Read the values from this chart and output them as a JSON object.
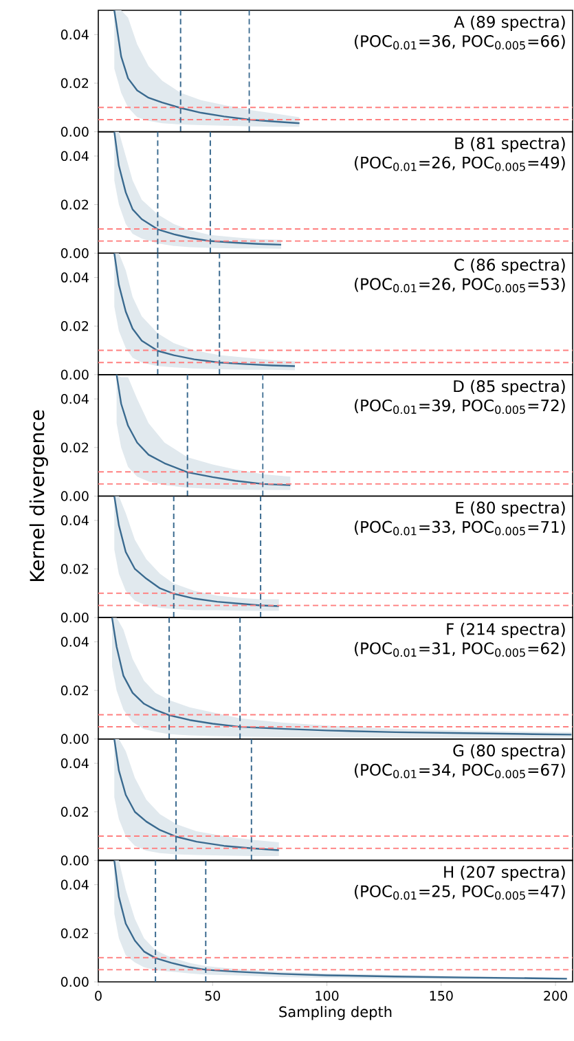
{
  "chart_data": [
    {
      "type": "line",
      "annotations": [
        "A (89 spectra)",
        "(POC$_{0.01}$=36, POC$_{0.005}$=66)"
      ],
      "xlim": [
        0,
        207.5
      ],
      "ylim": [
        0,
        0.05
      ],
      "xticks": [
        0,
        50,
        100,
        150,
        200
      ],
      "yticks": [
        {
          "value": 0,
          "label": "0.00"
        },
        {
          "value": 0.02,
          "label": "0.02"
        },
        {
          "value": 0.04,
          "label": "0.04"
        }
      ],
      "tick_labels": "y",
      "grid": false,
      "series": [
        {
          "color": "#3a6a8f",
          "x": [
            7,
            10,
            13,
            17,
            22,
            28,
            36,
            45,
            55,
            66,
            77,
            88
          ],
          "values": [
            0.05,
            0.031,
            0.022,
            0.017,
            0.014,
            0.012,
            0.0098,
            0.0078,
            0.0063,
            0.005,
            0.0042,
            0.0035
          ],
          "upper": [
            0.05,
            0.05,
            0.047,
            0.036,
            0.027,
            0.021,
            0.016,
            0.013,
            0.011,
            0.009,
            0.0075,
            0.006
          ],
          "lower": [
            0.026,
            0.016,
            0.01,
            0.006,
            0.0045,
            0.0035,
            0.003,
            0.0027,
            0.0025,
            0.0022,
            0.002,
            0.002
          ]
        }
      ],
      "ref_lines": [
        {
          "axis": "y",
          "value": 0.01,
          "color": "#ff8080",
          "line_style": "dashed"
        },
        {
          "axis": "y",
          "value": 0.005,
          "color": "#ff8080",
          "line_style": "dashed"
        },
        {
          "axis": "x",
          "value": 36,
          "color": "#3a6a8f",
          "line_style": "dashed"
        },
        {
          "axis": "x",
          "value": 66,
          "color": "#3a6a8f",
          "line_style": "dashed"
        }
      ]
    },
    {
      "type": "line",
      "annotations": [
        "B (81 spectra)",
        "(POC$_{0.01}$=26, POC$_{0.005}$=49)"
      ],
      "xlim": [
        0,
        207.5
      ],
      "ylim": [
        0,
        0.05
      ],
      "xticks": [
        0,
        50,
        100,
        150,
        200
      ],
      "yticks": [
        {
          "value": 0,
          "label": "0.00"
        },
        {
          "value": 0.02,
          "label": "0.02"
        },
        {
          "value": 0.04,
          "label": "0.04"
        }
      ],
      "tick_labels": "y",
      "grid": false,
      "series": [
        {
          "color": "#3a6a8f",
          "x": [
            7,
            9,
            12,
            15,
            19,
            26,
            33,
            40,
            49,
            60,
            70,
            80
          ],
          "values": [
            0.05,
            0.036,
            0.025,
            0.018,
            0.014,
            0.0098,
            0.0078,
            0.0063,
            0.005,
            0.0043,
            0.0038,
            0.0035
          ],
          "upper": [
            0.05,
            0.05,
            0.04,
            0.03,
            0.022,
            0.016,
            0.012,
            0.0095,
            0.0075,
            0.0065,
            0.0058,
            0.0055
          ],
          "lower": [
            0.03,
            0.02,
            0.012,
            0.008,
            0.006,
            0.004,
            0.003,
            0.0025,
            0.0022,
            0.002,
            0.002,
            0.0018
          ]
        }
      ],
      "ref_lines": [
        {
          "axis": "y",
          "value": 0.01,
          "color": "#ff8080",
          "line_style": "dashed"
        },
        {
          "axis": "y",
          "value": 0.005,
          "color": "#ff8080",
          "line_style": "dashed"
        },
        {
          "axis": "x",
          "value": 26,
          "color": "#3a6a8f",
          "line_style": "dashed"
        },
        {
          "axis": "x",
          "value": 49,
          "color": "#3a6a8f",
          "line_style": "dashed"
        }
      ]
    },
    {
      "type": "line",
      "annotations": [
        "C (86 spectra)",
        "(POC$_{0.01}$=26, POC$_{0.005}$=53)"
      ],
      "xlim": [
        0,
        207.5
      ],
      "ylim": [
        0,
        0.05
      ],
      "xticks": [
        0,
        50,
        100,
        150,
        200
      ],
      "yticks": [
        {
          "value": 0,
          "label": "0.00"
        },
        {
          "value": 0.02,
          "label": "0.02"
        },
        {
          "value": 0.04,
          "label": "0.04"
        }
      ],
      "tick_labels": "y",
      "grid": false,
      "series": [
        {
          "color": "#3a6a8f",
          "x": [
            7,
            9,
            12,
            15,
            19,
            26,
            33,
            42,
            53,
            65,
            76,
            86
          ],
          "values": [
            0.05,
            0.037,
            0.026,
            0.019,
            0.014,
            0.0098,
            0.008,
            0.0063,
            0.005,
            0.0043,
            0.0038,
            0.0035
          ],
          "upper": [
            0.05,
            0.05,
            0.043,
            0.032,
            0.024,
            0.017,
            0.013,
            0.01,
            0.008,
            0.007,
            0.006,
            0.0055
          ],
          "lower": [
            0.028,
            0.018,
            0.011,
            0.007,
            0.005,
            0.0035,
            0.003,
            0.0025,
            0.0022,
            0.002,
            0.002,
            0.0018
          ]
        }
      ],
      "ref_lines": [
        {
          "axis": "y",
          "value": 0.01,
          "color": "#ff8080",
          "line_style": "dashed"
        },
        {
          "axis": "y",
          "value": 0.005,
          "color": "#ff8080",
          "line_style": "dashed"
        },
        {
          "axis": "x",
          "value": 26,
          "color": "#3a6a8f",
          "line_style": "dashed"
        },
        {
          "axis": "x",
          "value": 53,
          "color": "#3a6a8f",
          "line_style": "dashed"
        }
      ]
    },
    {
      "type": "line",
      "ylabel": "Kernel divergence",
      "annotations": [
        "D (85 spectra)",
        "(POC$_{0.01}$=39, POC$_{0.005}$=72)"
      ],
      "xlim": [
        0,
        207.5
      ],
      "ylim": [
        0,
        0.05
      ],
      "xticks": [
        0,
        50,
        100,
        150,
        200
      ],
      "yticks": [
        {
          "value": 0,
          "label": "0.00"
        },
        {
          "value": 0.02,
          "label": "0.02"
        },
        {
          "value": 0.04,
          "label": "0.04"
        }
      ],
      "tick_labels": "y",
      "grid": false,
      "series": [
        {
          "color": "#3a6a8f",
          "x": [
            8,
            10,
            13,
            17,
            22,
            29,
            39,
            50,
            60,
            72,
            84
          ],
          "values": [
            0.05,
            0.038,
            0.029,
            0.022,
            0.017,
            0.0135,
            0.0098,
            0.0078,
            0.0063,
            0.005,
            0.0045
          ],
          "upper": [
            0.05,
            0.049,
            0.049,
            0.04,
            0.03,
            0.022,
            0.016,
            0.013,
            0.011,
            0.009,
            0.008
          ],
          "lower": [
            0.03,
            0.02,
            0.012,
            0.008,
            0.006,
            0.0045,
            0.0035,
            0.003,
            0.0027,
            0.0025,
            0.0025
          ]
        }
      ],
      "ref_lines": [
        {
          "axis": "y",
          "value": 0.01,
          "color": "#ff8080",
          "line_style": "dashed"
        },
        {
          "axis": "y",
          "value": 0.005,
          "color": "#ff8080",
          "line_style": "dashed"
        },
        {
          "axis": "x",
          "value": 39,
          "color": "#3a6a8f",
          "line_style": "dashed"
        },
        {
          "axis": "x",
          "value": 72,
          "color": "#3a6a8f",
          "line_style": "dashed"
        }
      ]
    },
    {
      "type": "line",
      "annotations": [
        "E (80 spectra)",
        "(POC$_{0.01}$=33, POC$_{0.005}$=71)"
      ],
      "xlim": [
        0,
        207.5
      ],
      "ylim": [
        0,
        0.05
      ],
      "xticks": [
        0,
        50,
        100,
        150,
        200
      ],
      "yticks": [
        {
          "value": 0,
          "label": "0.00"
        },
        {
          "value": 0.02,
          "label": "0.02"
        },
        {
          "value": 0.04,
          "label": "0.04"
        }
      ],
      "tick_labels": "y",
      "grid": false,
      "series": [
        {
          "color": "#3a6a8f",
          "x": [
            7,
            9,
            12,
            16,
            21,
            27,
            33,
            42,
            52,
            62,
            71,
            79
          ],
          "values": [
            0.05,
            0.038,
            0.027,
            0.02,
            0.016,
            0.012,
            0.0098,
            0.0078,
            0.0065,
            0.0057,
            0.005,
            0.0047
          ],
          "upper": [
            0.05,
            0.05,
            0.043,
            0.032,
            0.024,
            0.018,
            0.014,
            0.011,
            0.009,
            0.008,
            0.0075,
            0.0075
          ],
          "lower": [
            0.028,
            0.018,
            0.011,
            0.007,
            0.005,
            0.004,
            0.0035,
            0.003,
            0.003,
            0.0028,
            0.0027,
            0.0028
          ]
        }
      ],
      "ref_lines": [
        {
          "axis": "y",
          "value": 0.01,
          "color": "#ff8080",
          "line_style": "dashed"
        },
        {
          "axis": "y",
          "value": 0.005,
          "color": "#ff8080",
          "line_style": "dashed"
        },
        {
          "axis": "x",
          "value": 33,
          "color": "#3a6a8f",
          "line_style": "dashed"
        },
        {
          "axis": "x",
          "value": 71,
          "color": "#3a6a8f",
          "line_style": "dashed"
        }
      ]
    },
    {
      "type": "line",
      "annotations": [
        "F (214 spectra)",
        "(POC$_{0.01}$=31, POC$_{0.005}$=62)"
      ],
      "xlim": [
        0,
        207.5
      ],
      "ylim": [
        0,
        0.05
      ],
      "xticks": [
        0,
        50,
        100,
        150,
        200
      ],
      "yticks": [
        {
          "value": 0,
          "label": "0.00"
        },
        {
          "value": 0.02,
          "label": "0.02"
        },
        {
          "value": 0.04,
          "label": "0.04"
        }
      ],
      "tick_labels": "y",
      "grid": false,
      "series": [
        {
          "color": "#3a6a8f",
          "x": [
            6,
            8,
            11,
            15,
            20,
            25,
            31,
            40,
            50,
            62,
            80,
            100,
            130,
            160,
            190,
            207
          ],
          "values": [
            0.05,
            0.038,
            0.026,
            0.019,
            0.0145,
            0.012,
            0.0098,
            0.0078,
            0.0063,
            0.005,
            0.0042,
            0.0035,
            0.0028,
            0.0024,
            0.002,
            0.0018
          ],
          "upper": [
            0.05,
            0.05,
            0.045,
            0.033,
            0.024,
            0.019,
            0.016,
            0.013,
            0.011,
            0.0085,
            0.0068,
            0.0055,
            0.0042,
            0.0035,
            0.003,
            0.0028
          ],
          "lower": [
            0.03,
            0.02,
            0.012,
            0.007,
            0.004,
            0.003,
            0.002,
            0.0015,
            0.0012,
            0.001,
            0.0008,
            0.0007,
            0.0006,
            0.0005,
            0.0004,
            0.0005
          ]
        }
      ],
      "ref_lines": [
        {
          "axis": "y",
          "value": 0.01,
          "color": "#ff8080",
          "line_style": "dashed"
        },
        {
          "axis": "y",
          "value": 0.005,
          "color": "#ff8080",
          "line_style": "dashed"
        },
        {
          "axis": "x",
          "value": 31,
          "color": "#3a6a8f",
          "line_style": "dashed"
        },
        {
          "axis": "x",
          "value": 62,
          "color": "#3a6a8f",
          "line_style": "dashed"
        }
      ]
    },
    {
      "type": "line",
      "annotations": [
        "G (80 spectra)",
        "(POC$_{0.01}$=34, POC$_{0.005}$=67)"
      ],
      "xlim": [
        0,
        207.5
      ],
      "ylim": [
        0,
        0.05
      ],
      "xticks": [
        0,
        50,
        100,
        150,
        200
      ],
      "yticks": [
        {
          "value": 0,
          "label": "0.00"
        },
        {
          "value": 0.02,
          "label": "0.02"
        },
        {
          "value": 0.04,
          "label": "0.04"
        }
      ],
      "tick_labels": "y",
      "grid": false,
      "series": [
        {
          "color": "#3a6a8f",
          "x": [
            7,
            9,
            12,
            16,
            21,
            27,
            34,
            43,
            55,
            67,
            79
          ],
          "values": [
            0.05,
            0.037,
            0.027,
            0.02,
            0.016,
            0.0125,
            0.0098,
            0.0077,
            0.006,
            0.005,
            0.0042
          ],
          "upper": [
            0.05,
            0.05,
            0.045,
            0.034,
            0.025,
            0.019,
            0.015,
            0.012,
            0.01,
            0.0085,
            0.0075
          ],
          "lower": [
            0.026,
            0.017,
            0.01,
            0.006,
            0.004,
            0.003,
            0.0025,
            0.0022,
            0.002,
            0.0018,
            0.0018
          ]
        }
      ],
      "ref_lines": [
        {
          "axis": "y",
          "value": 0.01,
          "color": "#ff8080",
          "line_style": "dashed"
        },
        {
          "axis": "y",
          "value": 0.005,
          "color": "#ff8080",
          "line_style": "dashed"
        },
        {
          "axis": "x",
          "value": 34,
          "color": "#3a6a8f",
          "line_style": "dashed"
        },
        {
          "axis": "x",
          "value": 67,
          "color": "#3a6a8f",
          "line_style": "dashed"
        }
      ]
    },
    {
      "type": "line",
      "xlabel": "Sampling depth",
      "annotations": [
        "H (207 spectra)",
        "(POC$_{0.01}$=25, POC$_{0.005}$=47)"
      ],
      "xlim": [
        0,
        207.5
      ],
      "ylim": [
        0,
        0.05
      ],
      "xticks": [
        0,
        50,
        100,
        150,
        200
      ],
      "yticks": [
        {
          "value": 0,
          "label": "0.00"
        },
        {
          "value": 0.02,
          "label": "0.02"
        },
        {
          "value": 0.04,
          "label": "0.04"
        }
      ],
      "grid": false,
      "series": [
        {
          "color": "#3a6a8f",
          "x": [
            7,
            9,
            12,
            16,
            20,
            25,
            32,
            40,
            47,
            60,
            80,
            100,
            130,
            160,
            190,
            205
          ],
          "values": [
            0.05,
            0.035,
            0.024,
            0.017,
            0.0125,
            0.0098,
            0.0078,
            0.006,
            0.005,
            0.0042,
            0.0033,
            0.0027,
            0.0022,
            0.0018,
            0.0015,
            0.0013
          ],
          "upper": [
            0.05,
            0.05,
            0.038,
            0.026,
            0.018,
            0.013,
            0.01,
            0.0078,
            0.0065,
            0.0053,
            0.0042,
            0.0035,
            0.0028,
            0.0023,
            0.0019,
            0.0017
          ],
          "lower": [
            0.028,
            0.018,
            0.011,
            0.008,
            0.006,
            0.0048,
            0.0042,
            0.0035,
            0.003,
            0.0027,
            0.002,
            0.0016,
            0.0013,
            0.0011,
            0.001,
            0.0009
          ]
        }
      ],
      "ref_lines": [
        {
          "axis": "y",
          "value": 0.01,
          "color": "#ff8080",
          "line_style": "dashed"
        },
        {
          "axis": "y",
          "value": 0.005,
          "color": "#ff8080",
          "line_style": "dashed"
        },
        {
          "axis": "x",
          "value": 25,
          "color": "#3a6a8f",
          "line_style": "dashed"
        },
        {
          "axis": "x",
          "value": 47,
          "color": "#3a6a8f",
          "line_style": "dashed"
        }
      ]
    }
  ]
}
